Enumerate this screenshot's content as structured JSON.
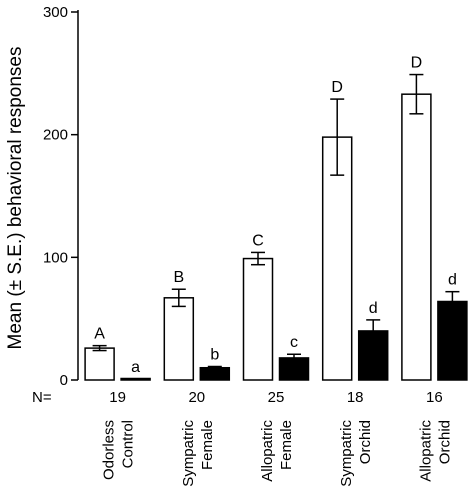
{
  "chart_data": {
    "type": "bar",
    "title": "",
    "xlabel": "",
    "ylabel": "Mean (± S.E.) behavioral responses",
    "ylim": [
      0,
      300
    ],
    "yticks": [
      0,
      100,
      200,
      300
    ],
    "n_prefix": "N=",
    "categories": [
      {
        "lines": [
          "Odorless",
          "Control"
        ],
        "n": "19"
      },
      {
        "lines": [
          "Sympatric",
          "Female"
        ],
        "n": "20"
      },
      {
        "lines": [
          "Allopatric",
          "Female"
        ],
        "n": "25"
      },
      {
        "lines": [
          "Sympatric",
          "Orchid"
        ],
        "n": "18"
      },
      {
        "lines": [
          "Allopatric",
          "Orchid"
        ],
        "n": "16"
      }
    ],
    "series": [
      {
        "style": "open",
        "values": [
          26,
          67,
          99,
          198,
          233
        ],
        "errors": [
          2,
          7,
          5,
          31,
          16
        ],
        "letters": [
          "A",
          "B",
          "C",
          "D",
          "D"
        ]
      },
      {
        "style": "filled",
        "values": [
          1,
          10,
          18,
          40,
          64
        ],
        "errors": [
          0,
          1,
          3,
          9,
          8
        ],
        "letters": [
          "a",
          "b",
          "c",
          "d",
          "d"
        ]
      }
    ],
    "colors": {
      "open_fill": "#ffffff",
      "filled_fill": "#000000",
      "stroke": "#000000"
    },
    "grid": false,
    "legend": "none"
  }
}
